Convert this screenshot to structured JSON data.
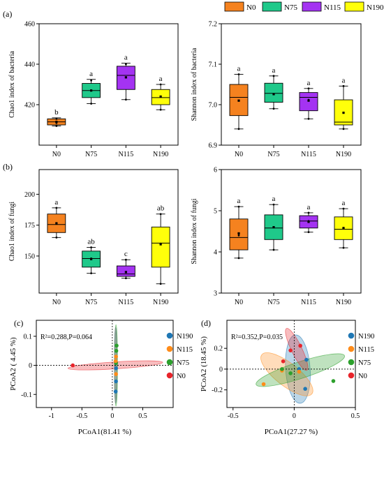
{
  "panel_labels": {
    "a": "(a)",
    "b": "(b)",
    "c": "(c)",
    "d": "(d)"
  },
  "legend": {
    "groups": [
      "N0",
      "N75",
      "N115",
      "N190"
    ],
    "colors": [
      "#F5821F",
      "#1FC98A",
      "#A433F2",
      "#FFFF0A"
    ]
  },
  "ordination_legend": {
    "labels": [
      "N190",
      "N115",
      "N75",
      "N0"
    ],
    "colors": [
      "#1F77B4",
      "#FF8C1A",
      "#2CA02C",
      "#E8242B"
    ]
  },
  "chart_data": [
    {
      "type": "box",
      "id": "chao1-bacteria",
      "ylabel": "Chao1 index of bacteria",
      "categories": [
        "N0",
        "N75",
        "N115",
        "N190"
      ],
      "ylim": [
        400,
        460
      ],
      "yticks": [
        420,
        440,
        460
      ],
      "boxes": [
        {
          "min": 409.5,
          "q1": 410,
          "median": 411.5,
          "q3": 413,
          "max": 413.5,
          "mean": 411.5,
          "letter": "b",
          "points": [
            409.5,
            411,
            413
          ]
        },
        {
          "min": 420.5,
          "q1": 423.5,
          "median": 427,
          "q3": 430.5,
          "max": 432.5,
          "mean": 427,
          "letter": "a",
          "points": [
            420.5,
            427,
            432
          ]
        },
        {
          "min": 422.5,
          "q1": 427.5,
          "median": 434.5,
          "q3": 439,
          "max": 440.5,
          "mean": 433.5,
          "letter": "a",
          "points": [
            422.5,
            433.5,
            440
          ]
        },
        {
          "min": 417.5,
          "q1": 420,
          "median": 423.5,
          "q3": 427.5,
          "max": 430,
          "mean": 424,
          "letter": "a",
          "points": [
            417.5,
            424,
            430
          ]
        }
      ]
    },
    {
      "type": "box",
      "id": "shannon-bacteria",
      "ylabel": "Shannon index of bacteria",
      "categories": [
        "N0",
        "N75",
        "N115",
        "N190"
      ],
      "ylim": [
        6.9,
        7.2
      ],
      "yticks": [
        6.9,
        7.0,
        7.1,
        7.2
      ],
      "boxes": [
        {
          "min": 6.94,
          "q1": 6.973,
          "median": 7.018,
          "q3": 7.05,
          "max": 7.075,
          "mean": 7.01,
          "letter": "a",
          "points": [
            6.94,
            7.01,
            7.075
          ]
        },
        {
          "min": 6.99,
          "q1": 7.006,
          "median": 7.028,
          "q3": 7.053,
          "max": 7.071,
          "mean": 7.026,
          "letter": "a",
          "points": [
            6.99,
            7.026,
            7.071
          ]
        },
        {
          "min": 6.965,
          "q1": 6.985,
          "median": 7.018,
          "q3": 7.03,
          "max": 7.04,
          "mean": 7.01,
          "letter": "a",
          "points": [
            6.965,
            7.012,
            7.04
          ]
        },
        {
          "min": 6.94,
          "q1": 6.95,
          "median": 6.957,
          "q3": 7.012,
          "max": 7.046,
          "mean": 6.98,
          "letter": "a",
          "points": [
            6.94,
            6.98,
            7.046
          ]
        }
      ]
    },
    {
      "type": "box",
      "id": "chao1-fungi",
      "ylabel": "Chao1 index of fungi",
      "categories": [
        "N0",
        "N75",
        "N115",
        "N190"
      ],
      "ylim": [
        120,
        220
      ],
      "yticks": [
        150,
        175,
        200
      ],
      "boxes": [
        {
          "min": 165,
          "q1": 169,
          "median": 175.5,
          "q3": 184,
          "max": 189,
          "mean": 176.5,
          "letter": "a",
          "points": [
            165,
            176.5,
            189
          ]
        },
        {
          "min": 136,
          "q1": 141,
          "median": 148,
          "q3": 154,
          "max": 157,
          "mean": 147.5,
          "letter": "ab",
          "points": [
            136,
            148,
            157
          ]
        },
        {
          "min": 132,
          "q1": 133.5,
          "median": 135.5,
          "q3": 142,
          "max": 147,
          "mean": 137,
          "letter": "c",
          "points": [
            132,
            137,
            147
          ]
        },
        {
          "min": 127.5,
          "q1": 141,
          "median": 160.5,
          "q3": 173.5,
          "max": 184,
          "mean": 159.5,
          "letter": "ab",
          "points": [
            127.5,
            160,
            184
          ]
        }
      ]
    },
    {
      "type": "box",
      "id": "shannon-fungi",
      "ylabel": "Shannon index of fungi",
      "categories": [
        "N0",
        "N75",
        "N115",
        "N190"
      ],
      "ylim": [
        3,
        6
      ],
      "yticks": [
        3,
        4,
        5,
        6
      ],
      "boxes": [
        {
          "min": 3.85,
          "q1": 4.05,
          "median": 4.35,
          "q3": 4.8,
          "max": 5.1,
          "mean": 4.45,
          "letter": "a",
          "points": [
            3.85,
            4.4,
            5.1
          ]
        },
        {
          "min": 4.05,
          "q1": 4.3,
          "median": 4.58,
          "q3": 4.9,
          "max": 5.15,
          "mean": 4.6,
          "letter": "a",
          "points": [
            4.05,
            4.6,
            5.15
          ]
        },
        {
          "min": 4.48,
          "q1": 4.58,
          "median": 4.75,
          "q3": 4.88,
          "max": 4.95,
          "mean": 4.73,
          "letter": "a",
          "points": [
            4.48,
            4.75,
            4.95
          ]
        },
        {
          "min": 4.1,
          "q1": 4.3,
          "median": 4.55,
          "q3": 4.85,
          "max": 5.05,
          "mean": 4.58,
          "letter": "a",
          "points": [
            4.1,
            4.58,
            5.05
          ]
        }
      ]
    },
    {
      "type": "scatter",
      "id": "pcoa-bacteria",
      "xlabel": "PCoA1(81.41 %)",
      "ylabel": "PCoA2 ( 4.45 %)",
      "annotation": "R²=0.288,P=0.064",
      "xlim": [
        -1.25,
        1.0
      ],
      "ylim": [
        -0.145,
        0.155
      ],
      "xticks": [
        -1,
        -0.5,
        0,
        0.5
      ],
      "yticks": [
        -0.1,
        0,
        0.1
      ],
      "ellipses": [
        {
          "group": "N0",
          "cx": 0.05,
          "cy": 0.0,
          "rx": 0.78,
          "ry": 0.012,
          "angle": -3.6
        },
        {
          "group": "N75",
          "cx": 0.06,
          "cy": 0.0,
          "rx": 0.025,
          "ry": 0.14,
          "angle": 0
        },
        {
          "group": "N115",
          "cx": 0.055,
          "cy": 0.0,
          "rx": 0.02,
          "ry": 0.13,
          "angle": 0
        },
        {
          "group": "N190",
          "cx": 0.055,
          "cy": 0.0,
          "rx": 0.02,
          "ry": 0.13,
          "angle": 0
        }
      ],
      "points": [
        {
          "group": "N0",
          "x": -0.65,
          "y": 0.0
        },
        {
          "group": "N0",
          "x": 0.06,
          "y": 0.009
        },
        {
          "group": "N75",
          "x": 0.07,
          "y": 0.068
        },
        {
          "group": "N75",
          "x": 0.065,
          "y": 0.05
        },
        {
          "group": "N75",
          "x": 0.06,
          "y": 0.008
        },
        {
          "group": "N115",
          "x": 0.06,
          "y": 0.03
        },
        {
          "group": "N115",
          "x": 0.055,
          "y": 0.015
        },
        {
          "group": "N115",
          "x": 0.06,
          "y": -0.03
        },
        {
          "group": "N190",
          "x": 0.06,
          "y": -0.01
        },
        {
          "group": "N190",
          "x": 0.06,
          "y": -0.055
        },
        {
          "group": "N190",
          "x": 0.055,
          "y": -0.09
        }
      ]
    },
    {
      "type": "scatter",
      "id": "pcoa-fungi",
      "xlabel": "PCoA1(27.27 %)",
      "ylabel": "PCoA2 (18.45 %)",
      "annotation": "R²=0.352,P=0.035",
      "xlim": [
        -0.55,
        0.5
      ],
      "ylim": [
        -0.37,
        0.47
      ],
      "xticks": [
        -0.5,
        0,
        0.5
      ],
      "yticks": [
        -0.2,
        0,
        0.2
      ],
      "ellipses": [
        {
          "group": "N190",
          "cx": 0.03,
          "cy": 0.0,
          "rx": 0.1,
          "ry": 0.33,
          "angle": -4
        },
        {
          "group": "N115",
          "cx": -0.06,
          "cy": -0.05,
          "rx": 0.26,
          "ry": 0.11,
          "angle": 38
        },
        {
          "group": "N75",
          "cx": 0.05,
          "cy": -0.01,
          "rx": 0.38,
          "ry": 0.08,
          "angle": -18
        },
        {
          "group": "N0",
          "cx": 0.02,
          "cy": 0.19,
          "rx": 0.19,
          "ry": 0.05,
          "angle": 64
        }
      ],
      "points": [
        {
          "group": "N190",
          "x": 0.04,
          "y": 0.0
        },
        {
          "group": "N190",
          "x": 0.1,
          "y": 0.09
        },
        {
          "group": "N190",
          "x": 0.09,
          "y": -0.19
        },
        {
          "group": "N115",
          "x": -0.25,
          "y": -0.145
        },
        {
          "group": "N115",
          "x": -0.1,
          "y": -0.015
        },
        {
          "group": "N115",
          "x": 0.04,
          "y": -0.025
        },
        {
          "group": "N75",
          "x": -0.1,
          "y": 0.0
        },
        {
          "group": "N75",
          "x": -0.03,
          "y": -0.04
        },
        {
          "group": "N75",
          "x": 0.32,
          "y": -0.115
        },
        {
          "group": "N0",
          "x": -0.03,
          "y": 0.18
        },
        {
          "group": "N0",
          "x": 0.05,
          "y": 0.225
        },
        {
          "group": "N0",
          "x": -0.09,
          "y": 0.075
        }
      ]
    }
  ]
}
